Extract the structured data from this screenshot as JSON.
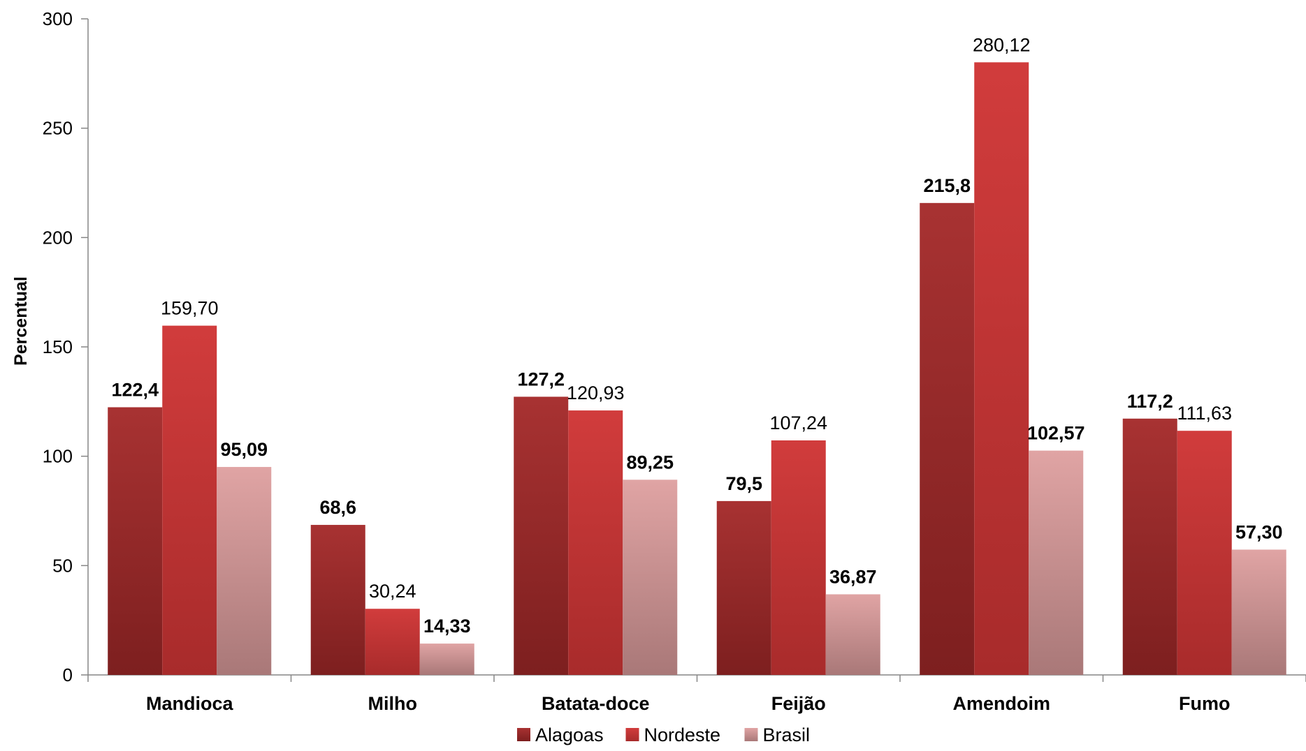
{
  "chart_data": {
    "type": "bar",
    "categories": [
      "Mandioca",
      "Milho",
      "Batata-doce",
      "Feijão",
      "Amendoim",
      "Fumo"
    ],
    "series": [
      {
        "name": "Alagoas",
        "values": [
          122.4,
          68.6,
          127.2,
          79.5,
          215.8,
          117.2
        ],
        "labels": [
          "122,4",
          "68,6",
          "127,2",
          "79,5",
          "215,8",
          "117,2"
        ],
        "label_bold": true,
        "color_top": "#a83232",
        "color_bottom": "#7d1f1f"
      },
      {
        "name": "Nordeste",
        "values": [
          159.7,
          30.24,
          120.93,
          107.24,
          280.12,
          111.63
        ],
        "labels": [
          "159,70",
          "30,24",
          "120,93",
          "107,24",
          "280,12",
          "111,63"
        ],
        "label_bold": false,
        "color_top": "#d13c3c",
        "color_bottom": "#a82b2b"
      },
      {
        "name": "Brasil",
        "values": [
          95.09,
          14.33,
          89.25,
          36.87,
          102.57,
          57.3
        ],
        "labels": [
          "95,09",
          "14,33",
          "89,25",
          "36,87",
          "102,57",
          "57,30"
        ],
        "label_bold": true,
        "color_top": "#e0a4a4",
        "color_bottom": "#a97878"
      }
    ],
    "ylabel": "Percentual",
    "xlabel": "",
    "ylim": [
      0,
      300
    ],
    "yticks": [
      0,
      50,
      100,
      150,
      200,
      250,
      300
    ],
    "grid": false,
    "legend": "bottom"
  }
}
